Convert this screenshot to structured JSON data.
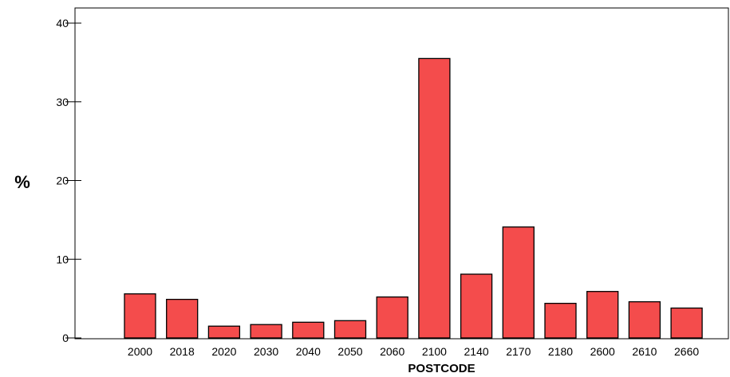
{
  "chart_data": {
    "type": "bar",
    "title": "",
    "xlabel": "POSTCODE",
    "ylabel": "%",
    "categories": [
      "2000",
      "2018",
      "2020",
      "2030",
      "2040",
      "2050",
      "2060",
      "2100",
      "2140",
      "2170",
      "2180",
      "2600",
      "2610",
      "2660"
    ],
    "values": [
      5.6,
      4.9,
      1.5,
      1.7,
      2.0,
      2.2,
      5.2,
      35.5,
      8.1,
      14.1,
      4.4,
      5.9,
      4.6,
      3.8
    ],
    "ylim": [
      0,
      40
    ],
    "yticks": [
      "0",
      "10",
      "20",
      "30",
      "40"
    ],
    "grid": false,
    "legend": "none",
    "bar_color": "#f44c4c"
  }
}
